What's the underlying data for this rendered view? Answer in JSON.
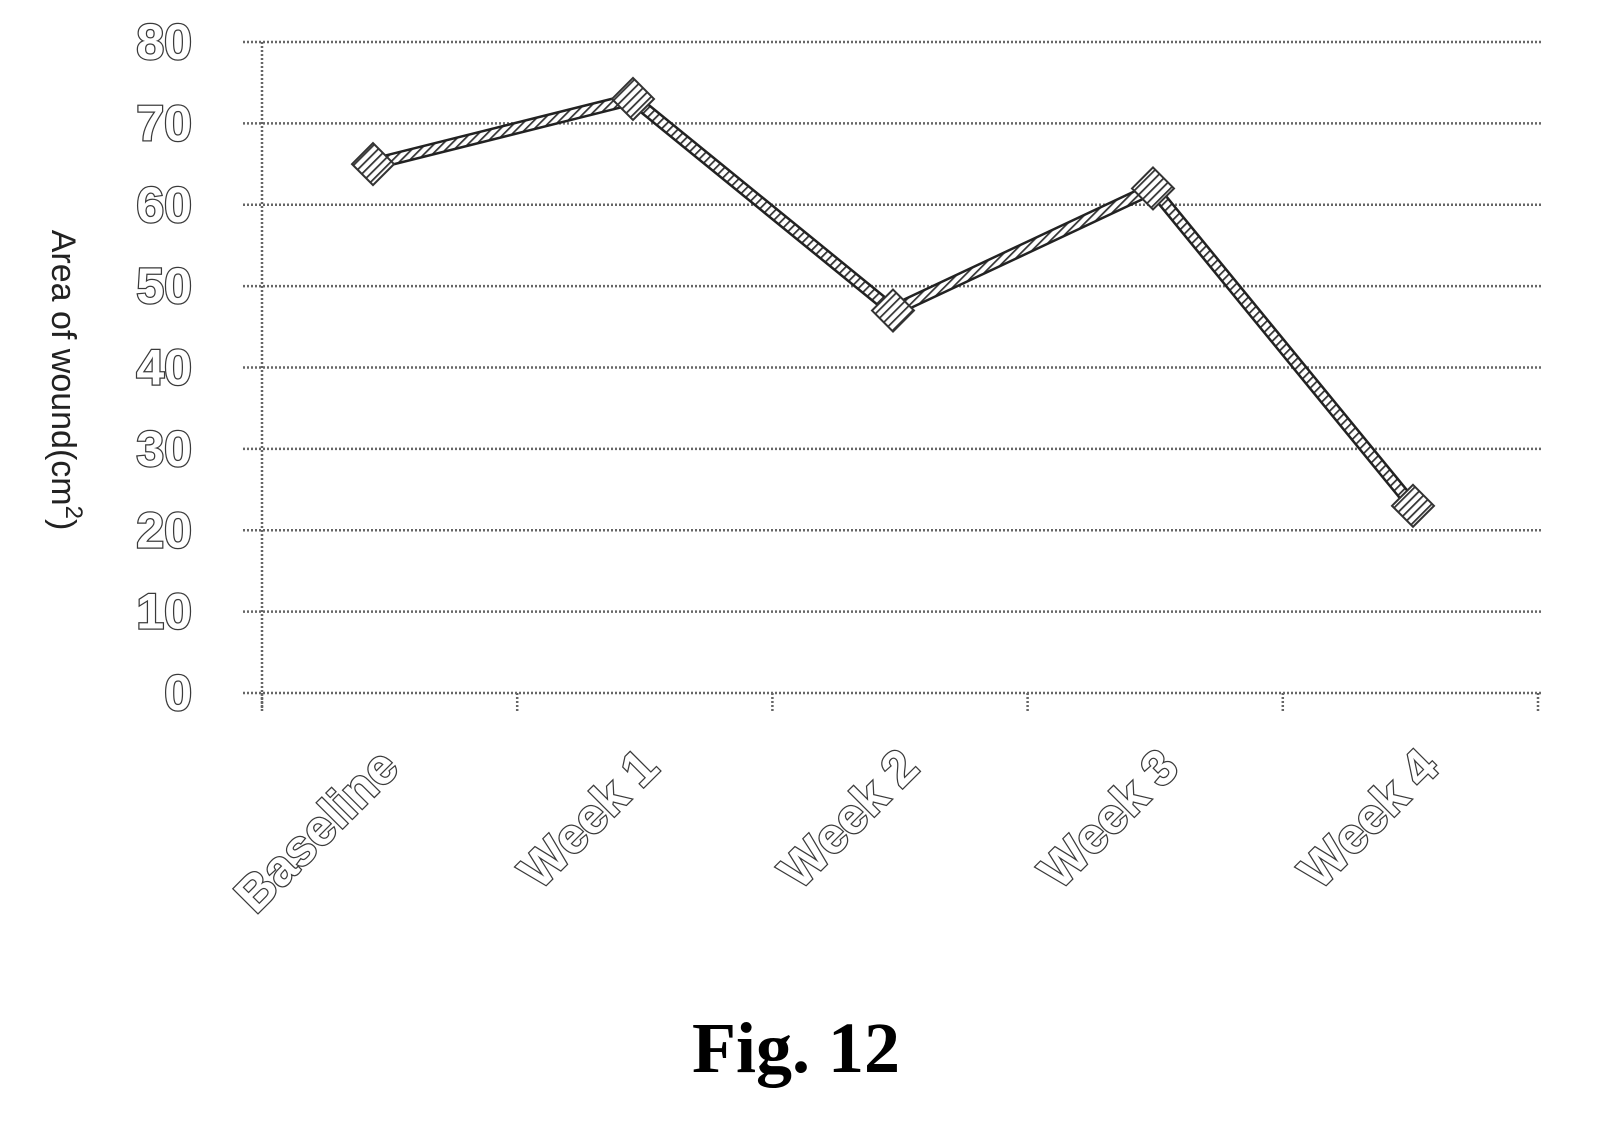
{
  "chart_data": {
    "type": "line",
    "categories": [
      "Baseline",
      "Week 1",
      "Week 2",
      "Week 3",
      "Week 4"
    ],
    "series": [
      {
        "values": [
          65,
          73,
          47,
          62,
          23
        ]
      }
    ],
    "title": "",
    "xlabel": "",
    "ylabel": "Area of wound(cm",
    "ylabel_superscript": "2",
    "ylabel_suffix": ")",
    "ylim": [
      0,
      80
    ],
    "yticks": [
      "0",
      "10",
      "20",
      "30",
      "40",
      "50",
      "60",
      "70",
      "80"
    ],
    "grid": "horizontal dotted",
    "legend": "none",
    "line_color": "#6a6a6a"
  },
  "caption": "Fig. 12"
}
